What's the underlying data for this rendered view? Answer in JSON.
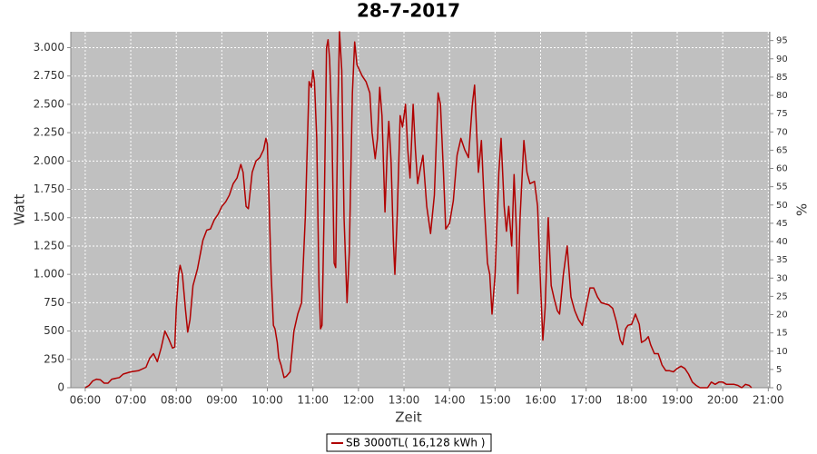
{
  "chart_data": {
    "type": "line",
    "title": "28-7-2017",
    "x_label": "Zeit",
    "y_label": "Watt",
    "y2_label": "%",
    "grid": true,
    "legend": "bottom",
    "xlim": [
      "05:41",
      "21:02"
    ],
    "xticks": [
      "06:00",
      "07:00",
      "08:00",
      "09:00",
      "10:00",
      "11:00",
      "12:00",
      "13:00",
      "14:00",
      "15:00",
      "16:00",
      "17:00",
      "18:00",
      "19:00",
      "20:00",
      "21:00"
    ],
    "ylim": [
      0,
      3140
    ],
    "yticks": [
      0,
      250,
      500,
      750,
      {
        "value": 1000,
        "label": "1.000"
      },
      {
        "value": 1250,
        "label": "1.250"
      },
      {
        "value": 1500,
        "label": "1.500"
      },
      {
        "value": 1750,
        "label": "1.750"
      },
      {
        "value": 2000,
        "label": "2.000"
      },
      {
        "value": 2250,
        "label": "2.250"
      },
      {
        "value": 2500,
        "label": "2.500"
      },
      {
        "value": 2750,
        "label": "2.750"
      },
      {
        "value": 3000,
        "label": "3.000"
      }
    ],
    "y2lim": [
      0,
      97.4
    ],
    "y2ticks": [
      0,
      5,
      10,
      15,
      20,
      25,
      30,
      35,
      40,
      45,
      50,
      55,
      60,
      65,
      70,
      75,
      80,
      85,
      90,
      95
    ],
    "x": [
      "06:00",
      "06:05",
      "06:10",
      "06:15",
      "06:20",
      "06:25",
      "06:30",
      "06:35",
      "06:45",
      "06:50",
      "07:00",
      "07:10",
      "07:20",
      "07:25",
      "07:30",
      "07:35",
      "07:40",
      "07:45",
      "07:50",
      "07:55",
      "07:58",
      "08:00",
      "08:03",
      "08:05",
      "08:08",
      "08:12",
      "08:15",
      "08:18",
      "08:22",
      "08:28",
      "08:35",
      "08:40",
      "08:45",
      "08:50",
      "08:55",
      "09:00",
      "09:05",
      "09:10",
      "09:15",
      "09:20",
      "09:25",
      "09:28",
      "09:32",
      "09:35",
      "09:40",
      "09:45",
      "09:50",
      "09:55",
      "09:58",
      "10:00",
      "10:02",
      "10:05",
      "10:08",
      "10:10",
      "10:13",
      "10:15",
      "10:18",
      "10:22",
      "10:25",
      "10:30",
      "10:35",
      "10:40",
      "10:45",
      "10:50",
      "10:55",
      "10:58",
      "11:00",
      "11:02",
      "11:05",
      "11:08",
      "11:10",
      "11:12",
      "11:15",
      "11:18",
      "11:20",
      "11:22",
      "11:25",
      "11:28",
      "11:30",
      "11:33",
      "11:35",
      "11:38",
      "11:41",
      "11:45",
      "11:48",
      "11:52",
      "11:55",
      "11:58",
      "12:05",
      "12:10",
      "12:15",
      "12:18",
      "12:22",
      "12:25",
      "12:28",
      "12:31",
      "12:35",
      "12:38",
      "12:40",
      "12:43",
      "12:46",
      "12:48",
      "12:51",
      "12:55",
      "12:58",
      "13:02",
      "13:05",
      "13:08",
      "13:12",
      "13:15",
      "13:18",
      "13:22",
      "13:25",
      "13:30",
      "13:35",
      "13:40",
      "13:45",
      "13:48",
      "13:52",
      "13:55",
      "14:00",
      "14:05",
      "14:10",
      "14:15",
      "14:20",
      "14:25",
      "14:30",
      "14:33",
      "14:38",
      "14:42",
      "14:46",
      "14:50",
      "14:53",
      "14:56",
      "15:00",
      "15:05",
      "15:08",
      "15:12",
      "15:15",
      "15:18",
      "15:22",
      "15:25",
      "15:28",
      "15:30",
      "15:33",
      "15:38",
      "15:42",
      "15:46",
      "15:52",
      "15:56",
      "16:00",
      "16:03",
      "16:06",
      "16:10",
      "16:14",
      "16:18",
      "16:22",
      "16:25",
      "16:30",
      "16:35",
      "16:40",
      "16:45",
      "16:50",
      "16:55",
      "17:00",
      "17:05",
      "17:10",
      "17:15",
      "17:20",
      "17:25",
      "17:30",
      "17:35",
      "17:40",
      "17:45",
      "17:48",
      "17:52",
      "17:55",
      "18:00",
      "18:05",
      "18:10",
      "18:13",
      "18:18",
      "18:22",
      "18:25",
      "18:30",
      "18:35",
      "18:40",
      "18:45",
      "18:50",
      "18:55",
      "19:00",
      "19:05",
      "19:10",
      "19:15",
      "19:20",
      "19:25",
      "19:30",
      "19:40",
      "19:45",
      "19:50",
      "19:55",
      "20:00",
      "20:05",
      "20:15",
      "20:20",
      "20:25",
      "20:30",
      "20:35",
      "20:38"
    ],
    "series": [
      {
        "name": "SB 3000TL( 16,128 kWh )",
        "color": "#b00000",
        "values": [
          0,
          20,
          60,
          75,
          70,
          40,
          40,
          75,
          90,
          120,
          140,
          150,
          180,
          260,
          300,
          230,
          350,
          500,
          430,
          350,
          360,
          700,
          1000,
          1080,
          1000,
          700,
          490,
          600,
          900,
          1050,
          1300,
          1390,
          1400,
          1480,
          1530,
          1600,
          1640,
          1700,
          1800,
          1850,
          1970,
          1900,
          1600,
          1580,
          1900,
          2000,
          2030,
          2100,
          2200,
          2150,
          1700,
          1000,
          550,
          520,
          400,
          260,
          200,
          90,
          100,
          140,
          500,
          650,
          750,
          1500,
          2700,
          2650,
          2800,
          2700,
          2200,
          900,
          520,
          550,
          1600,
          3000,
          3070,
          2900,
          2300,
          1100,
          1060,
          2500,
          3140,
          2800,
          1500,
          750,
          1200,
          2600,
          3050,
          2850,
          2750,
          2700,
          2600,
          2250,
          2020,
          2200,
          2650,
          2400,
          1550,
          2100,
          2350,
          2000,
          1300,
          1000,
          1500,
          2400,
          2300,
          2500,
          2100,
          1850,
          2500,
          2100,
          1800,
          1950,
          2050,
          1600,
          1360,
          1700,
          2600,
          2500,
          1900,
          1400,
          1450,
          1650,
          2050,
          2200,
          2100,
          2030,
          2500,
          2670,
          1900,
          2180,
          1600,
          1100,
          1000,
          650,
          1000,
          1900,
          2200,
          1600,
          1380,
          1600,
          1250,
          1880,
          1400,
          830,
          1500,
          2180,
          1900,
          1800,
          1820,
          1600,
          900,
          420,
          700,
          1500,
          900,
          780,
          680,
          650,
          1000,
          1250,
          800,
          680,
          600,
          550,
          720,
          880,
          880,
          800,
          750,
          740,
          730,
          700,
          580,
          420,
          380,
          520,
          550,
          560,
          650,
          560,
          400,
          420,
          450,
          380,
          300,
          300,
          200,
          150,
          150,
          140,
          170,
          190,
          170,
          120,
          50,
          20,
          0,
          0,
          50,
          30,
          50,
          50,
          30,
          30,
          20,
          0,
          30,
          20,
          0
        ]
      }
    ]
  }
}
